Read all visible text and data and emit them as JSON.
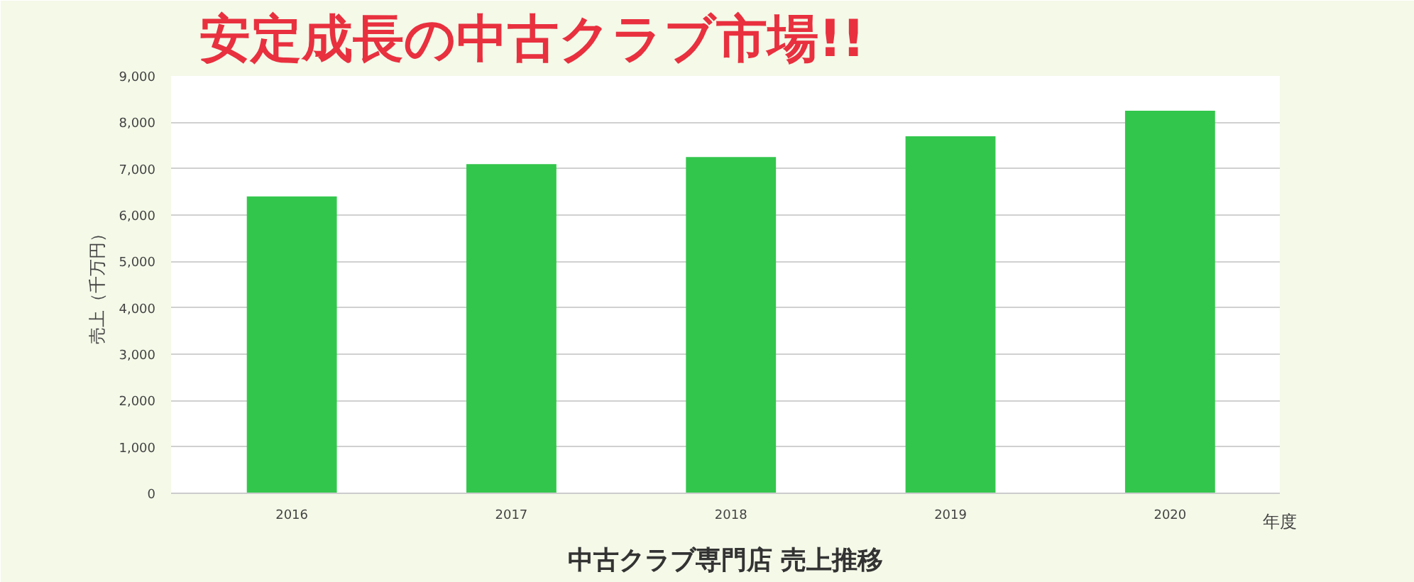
{
  "chart_data": {
    "type": "bar",
    "title": "中古クラブ専門店 売上推移",
    "categories": [
      "2016",
      "2017",
      "2018",
      "2019",
      "2020"
    ],
    "values": [
      6400,
      7100,
      7250,
      7700,
      8250
    ],
    "color": "#33c64c",
    "xlabel": "年度",
    "ylabel": "売上（千万円）",
    "ylim": [
      0,
      9000
    ],
    "yticks": [
      {
        "value": 0,
        "label": "0"
      },
      {
        "value": 1000,
        "label": "1,000"
      },
      {
        "value": 2000,
        "label": "2,000"
      },
      {
        "value": 3000,
        "label": "3,000"
      },
      {
        "value": 4000,
        "label": "4,000"
      },
      {
        "value": 5000,
        "label": "5,000"
      },
      {
        "value": 6000,
        "label": "6,000"
      },
      {
        "value": 7000,
        "label": "7,000"
      },
      {
        "value": 8000,
        "label": "8,000"
      },
      {
        "value": 9000,
        "label": "9,000"
      }
    ],
    "grid": "y",
    "annotations": [
      "安定成長の中古クラブ市場!!"
    ]
  }
}
